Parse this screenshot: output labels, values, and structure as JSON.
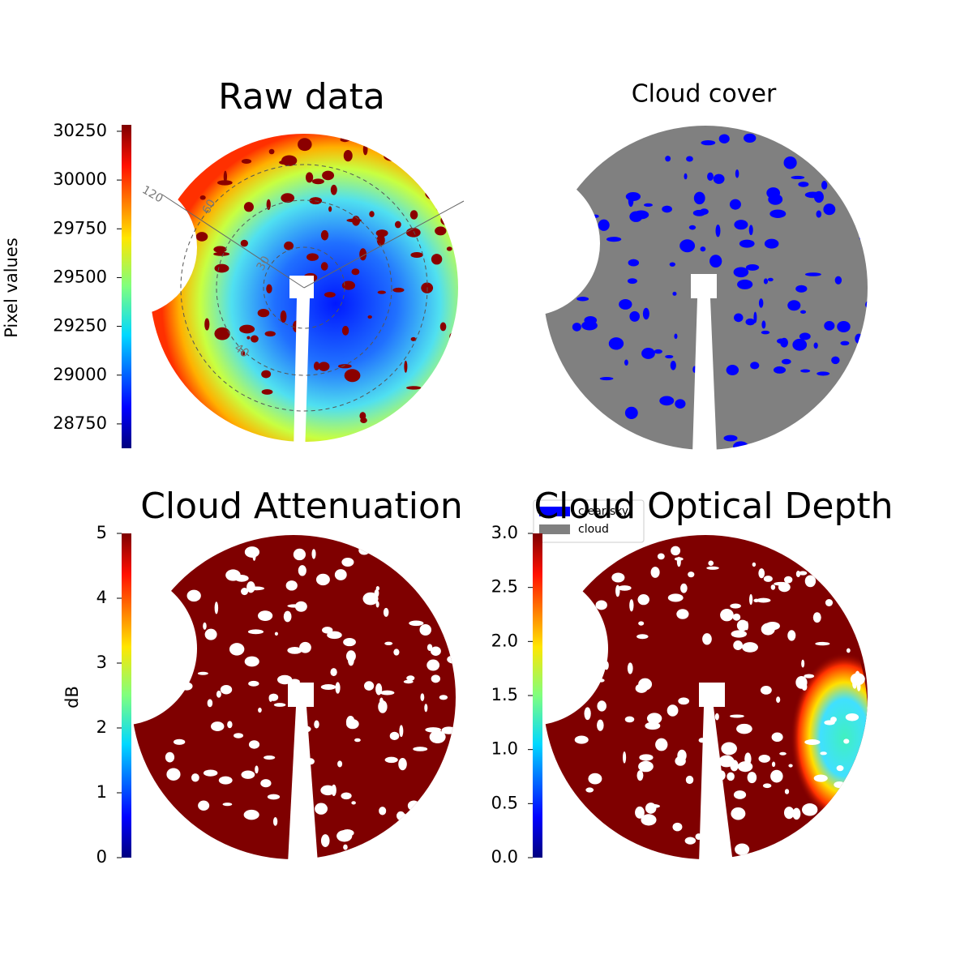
{
  "chart_data": [
    {
      "type": "image",
      "title": "Raw data",
      "colormap": "jet",
      "colorbar_label": "Pixel values",
      "ylim": [
        28625,
        30283
      ],
      "yticks": [
        28750,
        29000,
        29250,
        29500,
        29750,
        30000,
        30250
      ],
      "annotations": [
        "120",
        "60",
        "30",
        "40"
      ]
    },
    {
      "type": "image",
      "title": "Cloud cover",
      "series": [
        {
          "name": "clear sky",
          "color": "#0000ff"
        },
        {
          "name": "cloud",
          "color": "#808080"
        }
      ]
    },
    {
      "type": "image",
      "title": "Cloud Attenuation",
      "colormap": "jet",
      "colorbar_label": "dB",
      "ylim": [
        0,
        5
      ],
      "yticks": [
        0,
        1,
        2,
        3,
        4,
        5
      ]
    },
    {
      "type": "image",
      "title": "Cloud Optical Depth",
      "colormap": "jet",
      "ylim": [
        0,
        3
      ],
      "yticks": [
        {
          "value": 0,
          "label": "0.0"
        },
        0.5,
        {
          "value": 1,
          "label": "1.0"
        },
        1.5,
        {
          "value": 2,
          "label": "2.0"
        },
        2.5,
        {
          "value": 3,
          "label": "3.0"
        }
      ]
    }
  ]
}
